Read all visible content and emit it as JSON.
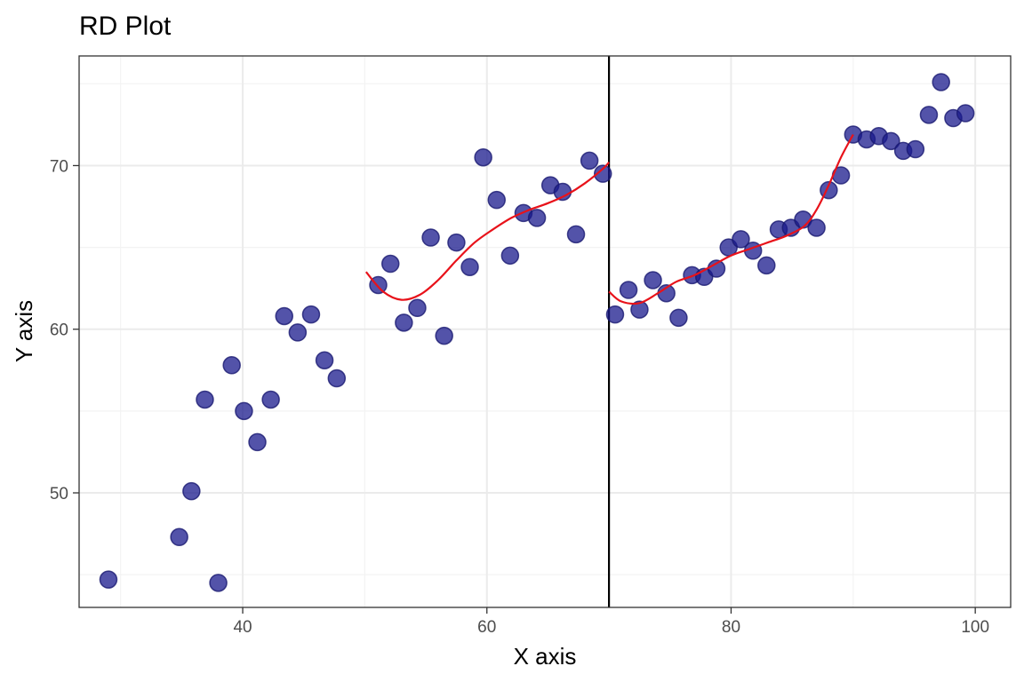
{
  "colors": {
    "point_fill": "#1a1a8c",
    "point_stroke": "#191970",
    "fit_line": "#e8121a",
    "cutoff_line": "#000000"
  },
  "chart_data": {
    "type": "scatter",
    "title": "RD Plot",
    "xlabel": "X axis",
    "ylabel": "Y axis",
    "xlim": [
      26.6,
      102.9
    ],
    "ylim": [
      43.0,
      76.7
    ],
    "x_ticks": [
      40,
      60,
      80,
      100
    ],
    "y_ticks": [
      50,
      60,
      70
    ],
    "x_tick_labels": [
      "40",
      "60",
      "80",
      "100"
    ],
    "y_tick_labels": [
      "50",
      "60",
      "70"
    ],
    "grid": true,
    "cutoff": 70,
    "series": [
      {
        "x": [
          29.0,
          34.8,
          35.8,
          36.9,
          38.0,
          39.1,
          40.1,
          41.2,
          42.3,
          43.4,
          44.5,
          45.6,
          46.7,
          47.7,
          51.1,
          52.1,
          53.2,
          54.3,
          55.4,
          56.5,
          57.5,
          58.6,
          59.7,
          60.8,
          61.9,
          63.0,
          64.1,
          65.2,
          66.2,
          67.3,
          68.4,
          69.5,
          70.5,
          71.6,
          72.5,
          73.6,
          74.7,
          75.7,
          76.8,
          77.8,
          78.8,
          79.8,
          80.8,
          81.8,
          82.9,
          83.9,
          84.9,
          85.9,
          87.0,
          88.0,
          89.0,
          90.0,
          91.1,
          92.1,
          93.1,
          94.1,
          95.1,
          96.2,
          97.2,
          98.2,
          99.2
        ],
        "y": [
          44.7,
          47.3,
          50.1,
          55.7,
          44.5,
          57.8,
          55.0,
          53.1,
          55.7,
          60.8,
          59.8,
          60.9,
          58.1,
          57.0,
          62.7,
          64.0,
          60.4,
          61.3,
          65.6,
          59.6,
          65.3,
          63.8,
          70.5,
          67.9,
          64.5,
          67.1,
          66.8,
          68.8,
          68.4,
          65.8,
          70.3,
          69.5,
          60.9,
          62.4,
          61.2,
          63.0,
          62.2,
          60.7,
          63.3,
          63.2,
          63.7,
          65.0,
          65.5,
          64.8,
          63.9,
          66.1,
          66.2,
          66.7,
          66.2,
          68.5,
          69.4,
          71.9,
          71.6,
          71.8,
          71.5,
          70.9,
          71.0,
          73.1,
          75.1,
          72.9,
          73.2
        ]
      }
    ],
    "fit_lines": [
      {
        "x": [
          50.1,
          51.5,
          53.0,
          54.5,
          56.0,
          57.5,
          59.0,
          60.5,
          62.0,
          63.5,
          65.0,
          66.5,
          68.0,
          69.5,
          70.0
        ],
        "y": [
          63.5,
          62.3,
          61.8,
          62.1,
          63.0,
          64.2,
          65.3,
          66.1,
          66.8,
          67.3,
          67.7,
          68.2,
          68.9,
          69.8,
          70.2
        ]
      },
      {
        "x": [
          70.0,
          71.0,
          72.5,
          74.0,
          75.5,
          77.0,
          78.5,
          80.0,
          81.5,
          83.0,
          84.5,
          86.0,
          87.0,
          88.0,
          89.0,
          90.0
        ],
        "y": [
          62.3,
          61.7,
          61.6,
          62.2,
          62.9,
          63.3,
          63.9,
          64.5,
          64.9,
          65.3,
          65.7,
          66.3,
          67.3,
          68.8,
          70.5,
          71.9
        ]
      }
    ]
  }
}
